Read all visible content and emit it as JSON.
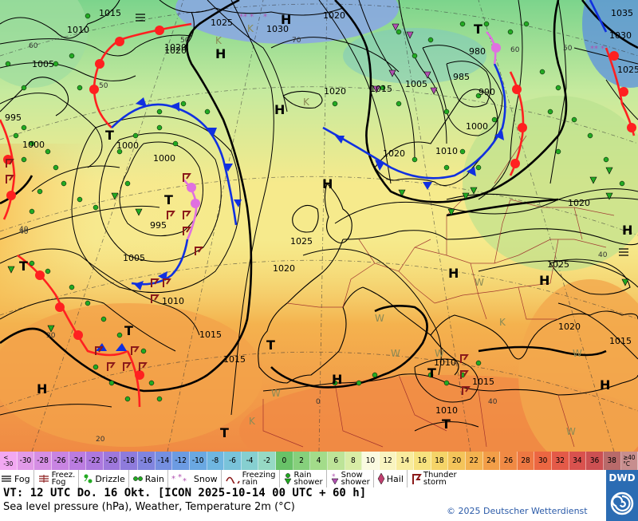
{
  "map": {
    "pressure_labels": [
      "1015",
      "1010",
      "1005",
      "1020",
      "1025",
      "1030",
      "1020",
      "1035",
      "1030",
      "1025",
      "995",
      "1000",
      "1000",
      "1000",
      "995",
      "1005",
      "1010",
      "1015",
      "1015",
      "1020",
      "1025",
      "1020",
      "1015",
      "1005",
      "985",
      "990",
      "1000",
      "1010",
      "1020",
      "1020",
      "1020",
      "1025",
      "1020",
      "1015",
      "1010",
      "1015",
      "1010",
      "1015",
      "980"
    ],
    "pressure_centers": [
      "H",
      "H",
      "H",
      "T",
      "T",
      "T",
      "T",
      "T",
      "T",
      "T",
      "H",
      "H",
      "H",
      "H",
      "H",
      "H",
      "T",
      "T",
      "H"
    ],
    "temp_labels": [
      "60",
      "50",
      "40",
      "50",
      "70",
      "60",
      "40",
      "40",
      "30",
      "20",
      "0",
      "50",
      "40"
    ]
  },
  "scale": {
    "cells": [
      {
        "label": "<\n-30",
        "color": "#f2a8f2"
      },
      {
        "label": "-30",
        "color": "#e29ae8"
      },
      {
        "label": "-28",
        "color": "#d58ee4"
      },
      {
        "label": "-26",
        "color": "#c884e2"
      },
      {
        "label": "-24",
        "color": "#bb7ce0"
      },
      {
        "label": "-22",
        "color": "#ad78de"
      },
      {
        "label": "-20",
        "color": "#9e78dc"
      },
      {
        "label": "-18",
        "color": "#8e7bdc"
      },
      {
        "label": "-16",
        "color": "#8084de"
      },
      {
        "label": "-14",
        "color": "#758fe0"
      },
      {
        "label": "-12",
        "color": "#6c9be2"
      },
      {
        "label": "-10",
        "color": "#6aa8e2"
      },
      {
        "label": "-8",
        "color": "#6fb6e0"
      },
      {
        "label": "-6",
        "color": "#79c3da"
      },
      {
        "label": "-4",
        "color": "#86cfd0"
      },
      {
        "label": "-2",
        "color": "#96d9c4"
      },
      {
        "label": "0",
        "color": "#68c268"
      },
      {
        "label": "2",
        "color": "#86d07c"
      },
      {
        "label": "4",
        "color": "#a3dc8a"
      },
      {
        "label": "6",
        "color": "#bde498"
      },
      {
        "label": "8",
        "color": "#d8eda6"
      },
      {
        "label": "10",
        "color": "#fafae0"
      },
      {
        "label": "12",
        "color": "#f9f4c0"
      },
      {
        "label": "14",
        "color": "#f8ec9e"
      },
      {
        "label": "16",
        "color": "#f7e27e"
      },
      {
        "label": "18",
        "color": "#f5d468"
      },
      {
        "label": "20",
        "color": "#f4c45a"
      },
      {
        "label": "22",
        "color": "#f3b250"
      },
      {
        "label": "24",
        "color": "#f29e48"
      },
      {
        "label": "26",
        "color": "#f08a44"
      },
      {
        "label": "28",
        "color": "#ee7842"
      },
      {
        "label": "30",
        "color": "#ec6742"
      },
      {
        "label": "32",
        "color": "#e45a48"
      },
      {
        "label": "34",
        "color": "#d9524e"
      },
      {
        "label": "36",
        "color": "#cc5052"
      },
      {
        "label": "38",
        "color": "#b86a6a"
      },
      {
        "label": "≥40\n°C",
        "color": "#c78e8e"
      }
    ]
  },
  "legend": {
    "fog": "Fog",
    "freeze_fog_1": "Freez.",
    "freeze_fog_2": "Fog",
    "drizzle": "Drizzle",
    "rain": "Rain",
    "snow": "Snow",
    "freezing_rain_1": "Freezing",
    "freezing_rain_2": "rain",
    "rain_shower_1": "Rain",
    "rain_shower_2": "shower",
    "snow_shower_1": "Snow",
    "snow_shower_2": "shower",
    "hail": "Hail",
    "thunderstorm_1": "Thunder",
    "thunderstorm_2": "storm"
  },
  "footer": {
    "valid_time": "VT: 12 UTC Do.  16 Okt. [ICON 2025-10-14  00 UTC + 60 h]",
    "description": "Sea level pressure (hPa), Weather, Temperature 2m (°C)",
    "copyright": "© 2025 Deutscher Wetterdienst",
    "logo_text": "DWD"
  },
  "colors": {
    "warm_front": "#ff2020",
    "cold_front": "#1030e0",
    "occluded_front": "#e070e0",
    "isobar": "#000000",
    "rain_symbol": "#22aa22",
    "thunder_symbol": "#8b1a1a",
    "coast": "#000000",
    "border": "#9b2a2a"
  }
}
